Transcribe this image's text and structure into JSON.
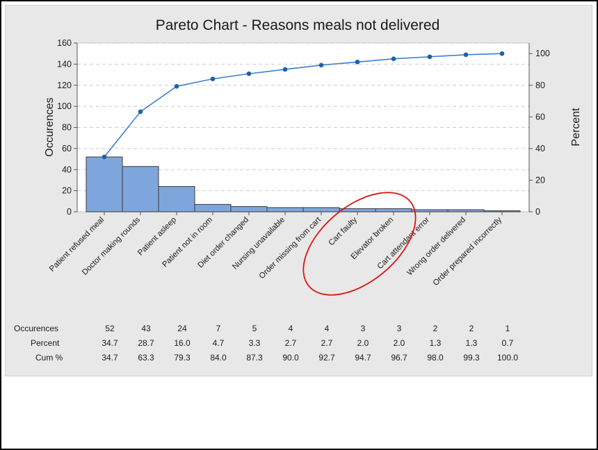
{
  "chart_data": {
    "type": "bar",
    "title": "Pareto Chart - Reasons meals not delivered",
    "ylabel": "Occurences",
    "y2label": "Percent",
    "ylim": [
      0,
      160
    ],
    "y2lim": [
      0,
      106.67
    ],
    "yticks": [
      0,
      20,
      40,
      60,
      80,
      100,
      120,
      140,
      160
    ],
    "y2ticks": [
      0,
      20,
      40,
      60,
      80,
      100
    ],
    "grid": true,
    "categories": [
      "Patient refused meal",
      "Doctor making rounds",
      "Patient asleep",
      "Patient not in room",
      "Diet order changed",
      "Nursing unavailable",
      "Order missing from cart",
      "Cart faulty",
      "Elevator broken",
      "Cart attendant error",
      "Wrong order delivered",
      "Order prepared incorrectly"
    ],
    "values": [
      52,
      43,
      24,
      7,
      5,
      4,
      4,
      3,
      3,
      2,
      2,
      1
    ],
    "cumulative_percent": [
      34.7,
      63.3,
      79.3,
      84.0,
      87.3,
      90.0,
      92.7,
      94.7,
      96.7,
      98.0,
      99.3,
      100.0
    ],
    "table": {
      "row_labels": [
        "Occurences",
        "Percent",
        "Cum %"
      ],
      "occurences": [
        "52",
        "43",
        "24",
        "7",
        "5",
        "4",
        "4",
        "3",
        "3",
        "2",
        "2",
        "1"
      ],
      "percent": [
        "34.7",
        "28.7",
        "16.0",
        "4.7",
        "3.3",
        "2.7",
        "2.7",
        "2.0",
        "2.0",
        "1.3",
        "1.3",
        "0.7"
      ],
      "cum": [
        "34.7",
        "63.3",
        "79.3",
        "84.0",
        "87.3",
        "90.0",
        "92.7",
        "94.7",
        "96.7",
        "98.0",
        "99.3",
        "100.0"
      ]
    },
    "annotation": "red ellipse circling Cart faulty and Elevator broken",
    "colors": {
      "bar": "#7ea6dc",
      "bar_edge": "#3a3a3a",
      "line": "#3a7fd0",
      "marker": "#1f5fa8",
      "annotation": "#e01010",
      "grid": "#cccccc",
      "background": "#e8e8e8",
      "plot_area": "#ffffff"
    }
  }
}
